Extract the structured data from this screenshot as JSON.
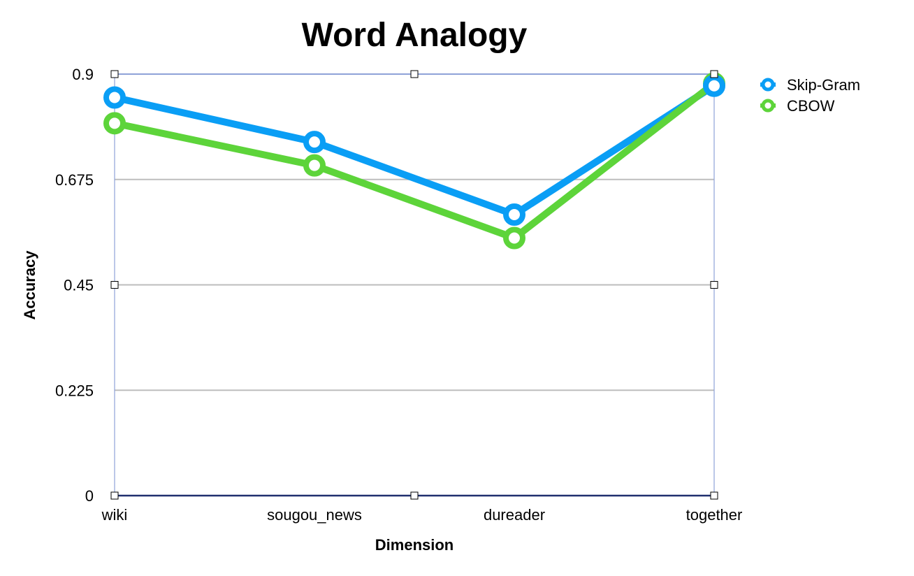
{
  "chart_data": {
    "type": "line",
    "title": "Word Analogy",
    "xlabel": "Dimension",
    "ylabel": "Accuracy",
    "categories": [
      "wiki",
      "sougou_news",
      "dureader",
      "together"
    ],
    "ylim": [
      0,
      0.9
    ],
    "yticks": [
      "0",
      "0.225",
      "0.45",
      "0.675",
      "0.9"
    ],
    "grid": true,
    "legend_position": "top-right",
    "series": [
      {
        "name": "Skip-Gram",
        "color": "#0a9ef5",
        "values": [
          0.85,
          0.755,
          0.6,
          0.875
        ]
      },
      {
        "name": "CBOW",
        "color": "#5dd43a",
        "values": [
          0.795,
          0.705,
          0.55,
          0.88
        ]
      }
    ]
  }
}
